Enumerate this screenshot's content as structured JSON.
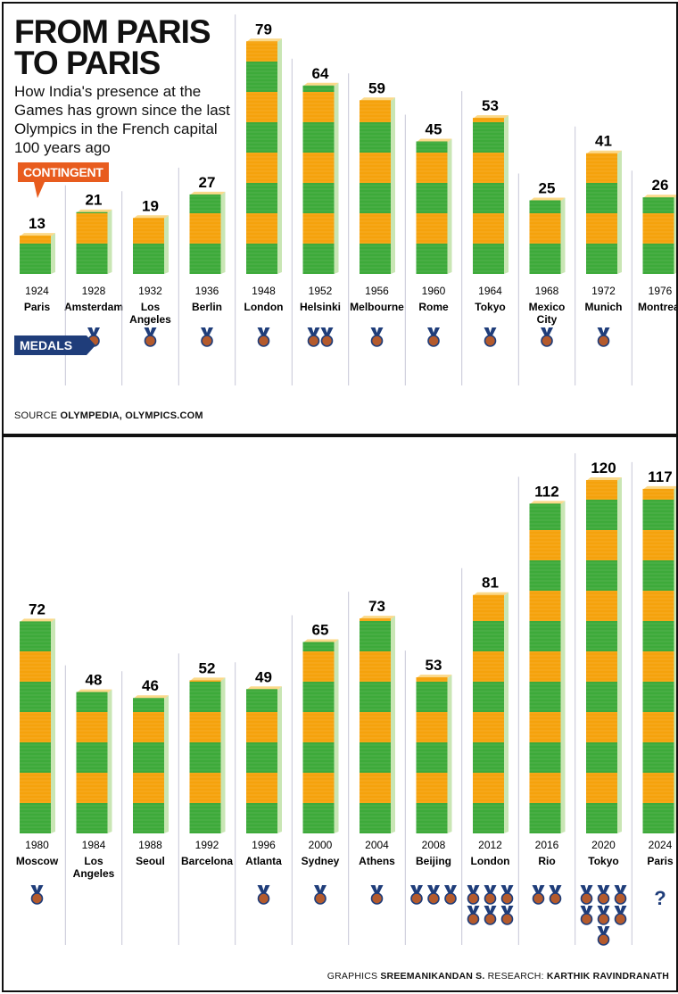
{
  "header": {
    "title": "FROM PARIS\nTO PARIS",
    "subtitle": "How India's presence at the Games has grown since the last Olympics in the French capital 100 years ago",
    "contingent_label": "CONTINGENT",
    "medals_label": "MEDALS"
  },
  "source": {
    "prefix": "SOURCE ",
    "text": "OLYMPEDIA, OLYMPICS.COM"
  },
  "credits": {
    "graphics_prefix": "GRAPHICS ",
    "graphics": "SREEMANIKANDAN S.",
    "research_prefix": " RESEARCH: ",
    "research": "KARTHIK RAVINDRANATH"
  },
  "colors": {
    "green": "#3daa3a",
    "orange": "#f5a20c",
    "navy": "#1f3d7a",
    "medal_bronze": "#b45a2c",
    "tag_orange": "#e85c1e"
  },
  "chart_data": [
    {
      "type": "bar",
      "series": [
        {
          "name": "CONTINGENT",
          "values": [
            13,
            21,
            19,
            27,
            79,
            64,
            59,
            45,
            53,
            25,
            41,
            26
          ]
        }
      ],
      "years": [
        "1924",
        "1928",
        "1932",
        "1936",
        "1948",
        "1952",
        "1956",
        "1960",
        "1964",
        "1968",
        "1972",
        "1976"
      ],
      "categories": [
        [
          "Paris"
        ],
        [
          "Amsterdam"
        ],
        [
          "Los",
          "Angeles"
        ],
        [
          "Berlin"
        ],
        [
          "London"
        ],
        [
          "Helsinki"
        ],
        [
          "Melbourne"
        ],
        [
          "Rome"
        ],
        [
          "Tokyo"
        ],
        [
          "Mexico",
          "City"
        ],
        [
          "Munich"
        ],
        [
          "Montreal"
        ]
      ],
      "medals": [
        0,
        1,
        1,
        1,
        1,
        2,
        1,
        1,
        1,
        1,
        1,
        0
      ],
      "ylim": [
        0,
        79
      ]
    },
    {
      "type": "bar",
      "series": [
        {
          "name": "CONTINGENT",
          "values": [
            72,
            48,
            46,
            52,
            49,
            65,
            73,
            53,
            81,
            112,
            120,
            117
          ]
        }
      ],
      "years": [
        "1980",
        "1984",
        "1988",
        "1992",
        "1996",
        "2000",
        "2004",
        "2008",
        "2012",
        "2016",
        "2020",
        "2024"
      ],
      "categories": [
        [
          "Moscow"
        ],
        [
          "Los",
          "Angeles"
        ],
        [
          "Seoul"
        ],
        [
          "Barcelona"
        ],
        [
          "Atlanta"
        ],
        [
          "Sydney"
        ],
        [
          "Athens"
        ],
        [
          "Beijing"
        ],
        [
          "London"
        ],
        [
          "Rio"
        ],
        [
          "Tokyo"
        ],
        [
          "Paris"
        ]
      ],
      "medals": [
        1,
        0,
        0,
        0,
        1,
        1,
        1,
        3,
        6,
        2,
        7,
        "?"
      ],
      "ylim": [
        0,
        120
      ]
    }
  ]
}
